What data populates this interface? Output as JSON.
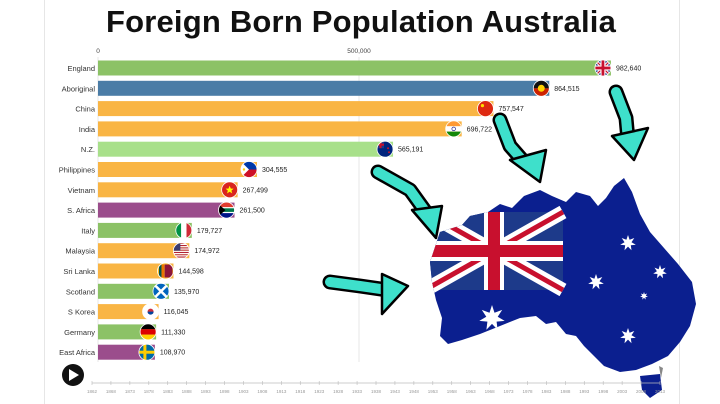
{
  "title": "Foreign Born Population Australia",
  "colors": {
    "orange": "#f9b544",
    "green": "#8cc266",
    "blue": "#4a7ca6",
    "light_green": "#a8e08a",
    "purple": "#9b4d8c",
    "teal_arrow": "#3ee0cb",
    "map_blue": "#0b1f8f"
  },
  "chart_data": {
    "type": "bar",
    "orientation": "horizontal",
    "title": "Foreign Born Population Australia",
    "xlim": [
      0,
      1000000
    ],
    "x_ticks": [
      0,
      500000
    ],
    "x_tick_labels": [
      "0",
      "500,000"
    ],
    "categories": [
      "England",
      "Aboriginal",
      "China",
      "India",
      "N.Z.",
      "Philippines",
      "Vietnam",
      "S. Africa",
      "Italy",
      "Malaysia",
      "Sri Lanka",
      "Scotland",
      "S Korea",
      "Germany",
      "East Africa"
    ],
    "values": [
      982640,
      864515,
      757547,
      696722,
      565191,
      304555,
      267499,
      261500,
      179727,
      174972,
      144598,
      135970,
      116045,
      111330,
      108970
    ],
    "value_labels": [
      "982,640",
      "864,515",
      "757,547",
      "696,722",
      "565,191",
      "304,555",
      "267,499",
      "261,500",
      "179,727",
      "174,972",
      "144,598",
      "135,970",
      "116,045",
      "111,330",
      "108,970"
    ],
    "bar_colors": [
      "#8cc266",
      "#4a7ca6",
      "#f9b544",
      "#f9b544",
      "#a8e08a",
      "#f9b544",
      "#f9b544",
      "#9b4d8c",
      "#8cc266",
      "#f9b544",
      "#f9b544",
      "#8cc266",
      "#f9b544",
      "#8cc266",
      "#9b4d8c"
    ],
    "flags": [
      "uk-flag-icon",
      "aboriginal-flag-icon",
      "china-flag-icon",
      "india-flag-icon",
      "nz-flag-icon",
      "philippines-flag-icon",
      "vietnam-flag-icon",
      "south-africa-flag-icon",
      "italy-flag-icon",
      "usa-flag-icon",
      "sri-lanka-flag-icon",
      "scotland-flag-icon",
      "south-korea-flag-icon",
      "germany-flag-icon",
      "sweden-flag-icon"
    ],
    "grid": true,
    "legend": "none"
  },
  "timeline": {
    "years": [
      "1862",
      "1868",
      "1873",
      "1878",
      "1883",
      "1888",
      "1893",
      "1898",
      "1903",
      "1908",
      "1913",
      "1918",
      "1923",
      "1928",
      "1933",
      "1938",
      "1943",
      "1948",
      "1953",
      "1958",
      "1963",
      "1968",
      "1973",
      "1978",
      "1983",
      "1988",
      "1993",
      "1998",
      "2003",
      "2008",
      "2013"
    ]
  },
  "controls": {
    "play_icon": "play-icon"
  },
  "decoration": {
    "map": "australia-flag-map",
    "arrows": 4
  }
}
